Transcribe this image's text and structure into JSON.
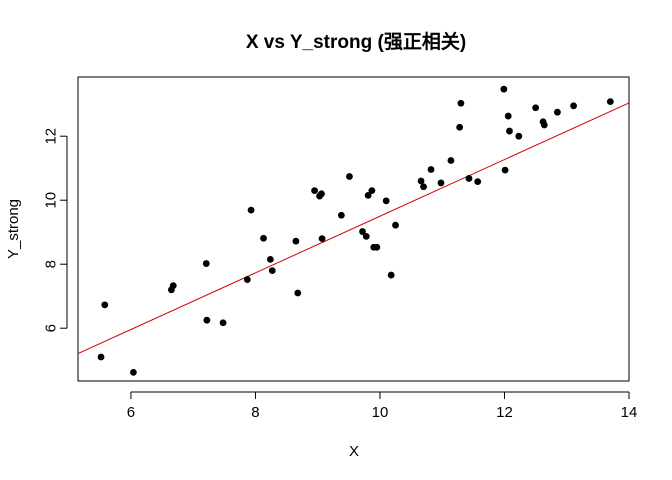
{
  "chart_data": {
    "type": "scatter",
    "title": "X vs Y_strong (强正相关)",
    "xlabel": "X",
    "ylabel": "Y_strong",
    "xlim": [
      5.15,
      14.0
    ],
    "ylim": [
      4.35,
      13.85
    ],
    "xticks": [
      6,
      8,
      10,
      12,
      14
    ],
    "yticks": [
      6,
      8,
      10,
      12
    ],
    "grid": false,
    "point_color": "#000000",
    "fit_line": {
      "intercept": 0.65,
      "slope": 0.885,
      "color": "#cc0000"
    },
    "series": [
      {
        "name": "Y_strong",
        "x": [
          5.52,
          5.58,
          6.04,
          6.65,
          6.68,
          7.21,
          7.22,
          7.48,
          7.87,
          7.93,
          8.13,
          8.24,
          8.27,
          8.65,
          8.68,
          8.95,
          9.03,
          9.06,
          9.07,
          9.38,
          9.51,
          9.72,
          9.78,
          9.81,
          9.87,
          9.9,
          9.95,
          10.1,
          10.18,
          10.25,
          10.66,
          10.7,
          10.82,
          10.98,
          11.14,
          11.28,
          11.3,
          11.43,
          11.57,
          11.99,
          12.01,
          12.06,
          12.08,
          12.23,
          12.5,
          12.62,
          12.64,
          12.85,
          13.11,
          13.7
        ],
        "y": [
          5.1,
          6.73,
          4.62,
          7.2,
          7.33,
          8.02,
          6.25,
          6.17,
          7.52,
          9.69,
          8.81,
          8.15,
          7.8,
          8.72,
          7.1,
          10.3,
          10.13,
          10.2,
          8.8,
          9.53,
          10.74,
          9.02,
          8.87,
          10.15,
          10.3,
          8.53,
          8.53,
          9.98,
          7.66,
          9.22,
          10.6,
          10.42,
          10.96,
          10.54,
          11.24,
          12.28,
          13.03,
          10.68,
          10.58,
          13.47,
          10.94,
          12.63,
          12.16,
          12.0,
          12.89,
          12.45,
          12.35,
          12.75,
          12.95,
          13.08
        ]
      }
    ]
  }
}
